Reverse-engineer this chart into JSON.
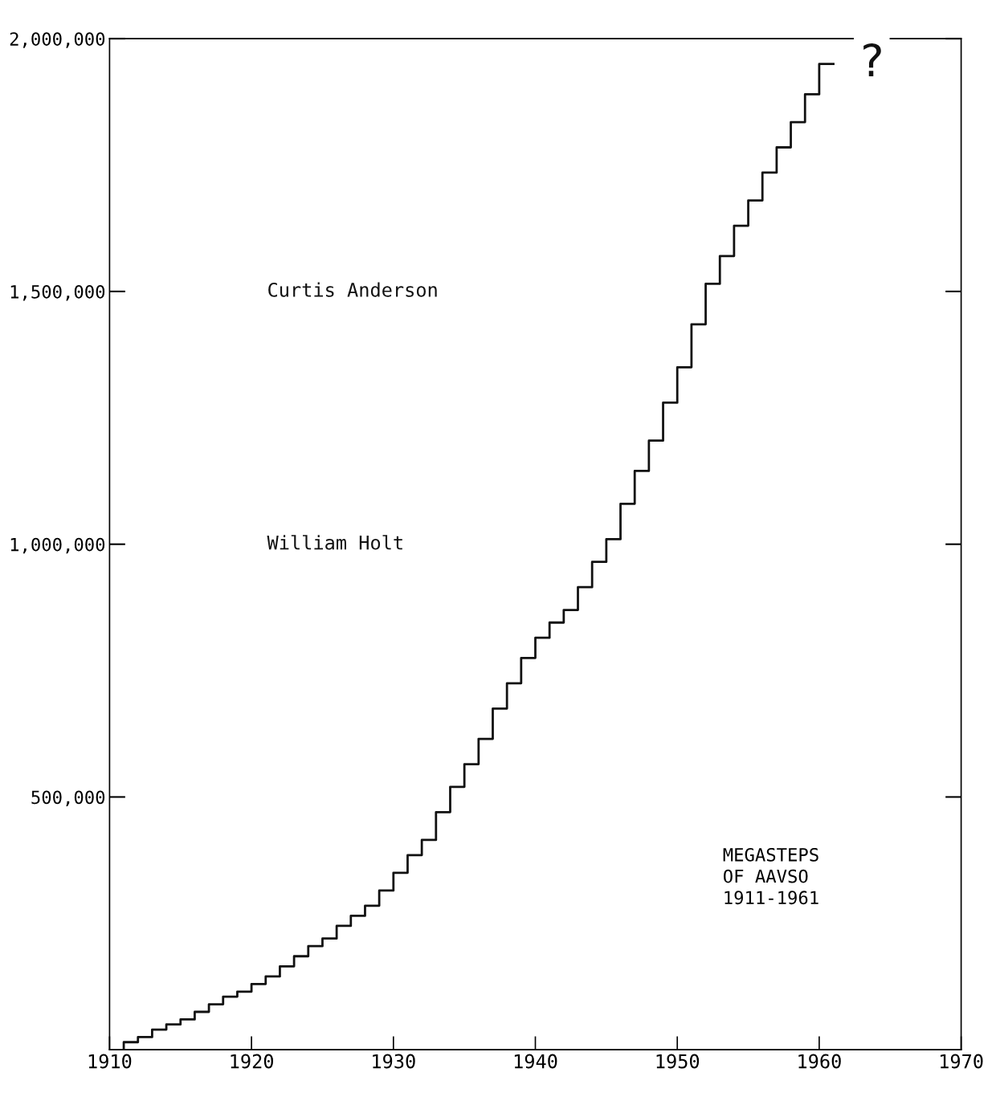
{
  "chart_data": {
    "type": "step",
    "title": "MEGASTEPS\nOF AAVSO\n1911-1961",
    "x": [
      1911,
      1912,
      1913,
      1914,
      1915,
      1916,
      1917,
      1918,
      1919,
      1920,
      1921,
      1922,
      1923,
      1924,
      1925,
      1926,
      1927,
      1928,
      1929,
      1930,
      1931,
      1932,
      1933,
      1934,
      1935,
      1936,
      1937,
      1938,
      1939,
      1940,
      1941,
      1942,
      1943,
      1944,
      1945,
      1946,
      1947,
      1948,
      1949,
      1950,
      1951,
      1952,
      1953,
      1954,
      1955,
      1956,
      1957,
      1958,
      1959,
      1960,
      1961
    ],
    "series": [
      {
        "color": "#111111",
        "values": [
          0,
          15000,
          25000,
          40000,
          50000,
          60000,
          75000,
          90000,
          105000,
          115000,
          130000,
          145000,
          165000,
          185000,
          205000,
          220000,
          245000,
          265000,
          285000,
          315000,
          350000,
          385000,
          415000,
          470000,
          520000,
          565000,
          615000,
          675000,
          725000,
          775000,
          815000,
          845000,
          870000,
          915000,
          965000,
          1010000,
          1080000,
          1145000,
          1205000,
          1280000,
          1350000,
          1435000,
          1515000,
          1570000,
          1630000,
          1680000,
          1735000,
          1785000,
          1835000,
          1890000,
          1950000
        ]
      }
    ],
    "xlim": [
      1910,
      1970
    ],
    "xticks": [
      1910,
      1920,
      1930,
      1940,
      1950,
      1960,
      1970
    ],
    "ylim": [
      0,
      2000000
    ],
    "yticks": [
      {
        "value": 500000,
        "label": "500,000"
      },
      {
        "value": 1000000,
        "label": "1,000,000"
      },
      {
        "value": 1500000,
        "label": "1,500,000"
      },
      {
        "value": 2000000,
        "label": "2,000,000"
      }
    ],
    "annotations": [
      "Curtis Anderson",
      "William Holt",
      "?"
    ],
    "grid": false,
    "line_style": "solid",
    "marker": "none"
  }
}
